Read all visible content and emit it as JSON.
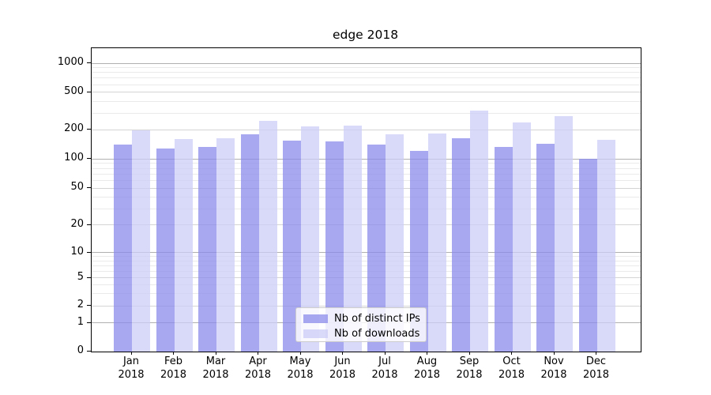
{
  "chart_data": {
    "type": "bar",
    "title": "edge 2018",
    "categories": [
      "Jan",
      "Feb",
      "Mar",
      "Apr",
      "May",
      "Jun",
      "Jul",
      "Aug",
      "Sep",
      "Oct",
      "Nov",
      "Dec"
    ],
    "year_suffix": "2018",
    "series": [
      {
        "name": "Nb of distinct IPs",
        "color": "#8b8beb",
        "alpha": 0.75,
        "values": [
          140,
          128,
          132,
          181,
          156,
          152,
          142,
          122,
          165,
          133,
          144,
          100
        ]
      },
      {
        "name": "Nb of downloads",
        "color": "#ccccf7",
        "alpha": 0.75,
        "values": [
          199,
          161,
          163,
          251,
          216,
          220,
          180,
          183,
          317,
          238,
          278,
          158
        ]
      }
    ],
    "yscale": "symlog",
    "ylim": [
      0,
      1400
    ],
    "yticks_labeled": [
      0,
      1,
      2,
      5,
      10,
      20,
      50,
      100,
      200,
      500,
      1000
    ],
    "yticks_major": [
      1,
      10,
      100,
      1000
    ],
    "yticks_minor_labeled": [
      2,
      5,
      20,
      50,
      200,
      500
    ],
    "yticks_minor": [
      3,
      4,
      6,
      7,
      8,
      9,
      30,
      40,
      60,
      70,
      80,
      90,
      300,
      400,
      600,
      700,
      800,
      900
    ],
    "grid": true,
    "legend_position": "lower center"
  },
  "colors": {
    "background": "#ffffff",
    "spine": "#000000",
    "text": "#000000",
    "grid_major": "#b0b0b0",
    "grid_minor_labeled": "#d4d4d4",
    "grid_minor": "#eaeaea",
    "legend_border": "#cccccc",
    "legend_bg": "rgba(255,255,255,0.8)"
  }
}
